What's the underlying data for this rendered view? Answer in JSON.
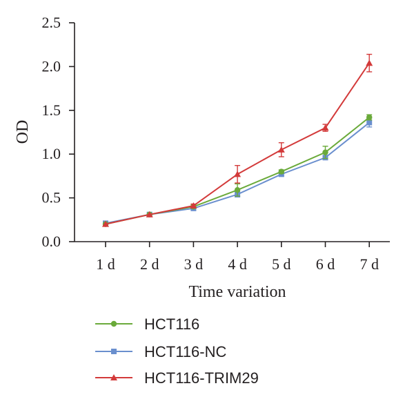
{
  "chart_data": {
    "type": "line",
    "title": "",
    "xlabel": "Time variation",
    "ylabel": "OD",
    "categories": [
      "1 d",
      "2 d",
      "3 d",
      "4 d",
      "5 d",
      "6 d",
      "7 d"
    ],
    "ylim": [
      0,
      2.5
    ],
    "yticks": [
      "0.0",
      "0.5",
      "1.0",
      "1.5",
      "2.0",
      "2.5"
    ],
    "legend_position": "bottom-left",
    "grid": false,
    "series": [
      {
        "name": "HCT116",
        "color": "#6aaa3a",
        "marker": "circle",
        "values": [
          0.2,
          0.31,
          0.4,
          0.59,
          0.8,
          1.02,
          1.42
        ],
        "errors": [
          0.01,
          0.01,
          0.02,
          0.07,
          0.02,
          0.07,
          0.03
        ]
      },
      {
        "name": "HCT116-NC",
        "color": "#6a8fce",
        "marker": "square",
        "values": [
          0.21,
          0.31,
          0.38,
          0.54,
          0.77,
          0.96,
          1.36
        ],
        "errors": [
          0.01,
          0.01,
          0.02,
          0.03,
          0.02,
          0.02,
          0.05
        ]
      },
      {
        "name": "HCT116-TRIM29",
        "color": "#d33a3a",
        "marker": "triangle",
        "values": [
          0.2,
          0.31,
          0.41,
          0.77,
          1.05,
          1.3,
          2.04
        ],
        "errors": [
          0.01,
          0.01,
          0.02,
          0.1,
          0.08,
          0.04,
          0.1
        ]
      }
    ]
  }
}
